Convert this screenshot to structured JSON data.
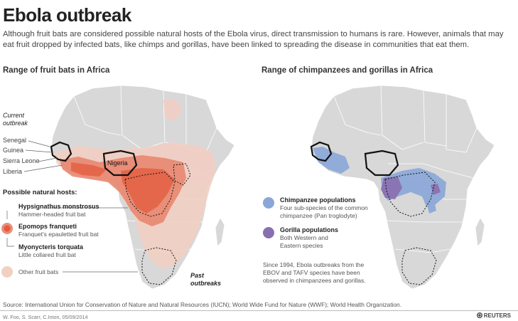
{
  "title": "Ebola outbreak",
  "subtitle": "Although fruit bats are considered possible natural hosts of the Ebola virus, direct transmission to humans is rare. However, animals that may eat fruit dropped by infected bats, like chimps and gorillas, have been linked to spreading the disease in communities that eat them.",
  "left_map": {
    "title": "Range of fruit bats in Africa",
    "current_outbreak": "Current outbreak",
    "countries": [
      "Senegal",
      "Guinea",
      "Sierra Leone",
      "Liberia"
    ],
    "nigeria": "Nigeria",
    "hosts_title": "Possible natural hosts:",
    "species": [
      {
        "name": "Hypsignathus monstrosus",
        "common": "Hammer-headed fruit bat"
      },
      {
        "name": "Epomops franqueti",
        "common": "Franquet's epauletted fruit bat"
      },
      {
        "name": "Myonycteris torquata",
        "common": "Little collared fruit bat"
      }
    ],
    "other_bats": "Other fruit bats",
    "past_outbreaks": "Past outbreaks",
    "colors": {
      "main_range": "#e8826a",
      "core_range": "#e35a3c",
      "other_bats": "#f2cfc3"
    }
  },
  "right_map": {
    "title": "Range of chimpanzees and gorillas in Africa",
    "chimp": {
      "name": "Chimpanzee populations",
      "desc1": "Four sub-species of the common",
      "desc2": "chimpanzee (Pan troglodyte)",
      "color": "#8aa7d8"
    },
    "gorilla": {
      "name": "Gorilla populations",
      "desc1": "Both Western and",
      "desc2": "Eastern species",
      "color": "#8a6fb0"
    },
    "note": [
      "Since 1994, Ebola outbreaks from the",
      "EBOV and TAFV species have been",
      "observed in chimpanzees and gorillas."
    ]
  },
  "footer": {
    "source": "Source: International Union for Conservation of Nature and Natural Resources (IUCN); World Wide Fund for Nature (WWF); World Health Organization.",
    "credit": "W. Foo, S. Scarr, C.Inton, 05/09/2014",
    "logo": "REUTERS"
  }
}
